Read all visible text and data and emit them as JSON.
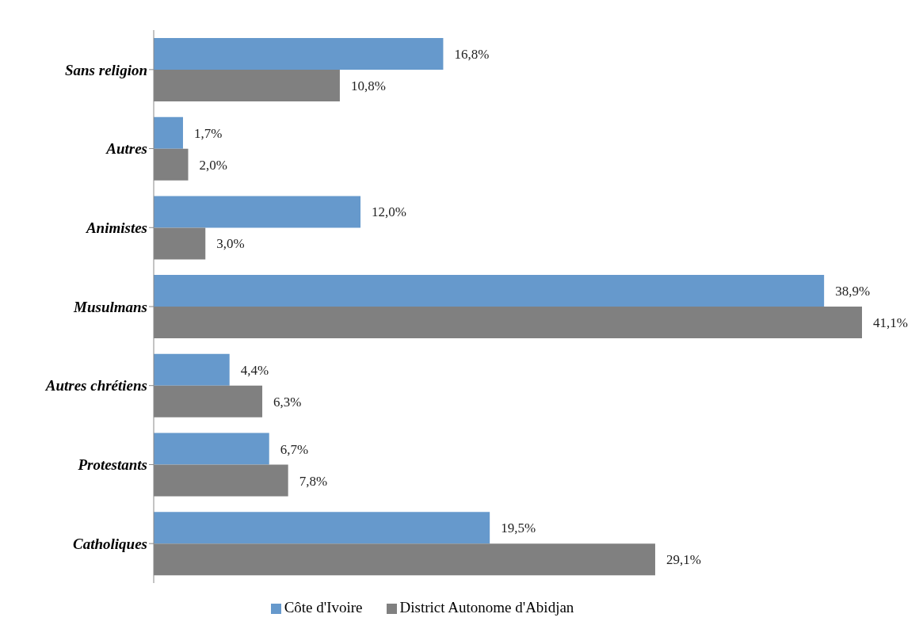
{
  "chart_data": {
    "type": "bar",
    "orientation": "horizontal",
    "categories": [
      "Sans religion",
      "Autres",
      "Animistes",
      "Musulmans",
      "Autres chrétiens",
      "Protestants",
      "Catholiques"
    ],
    "series": [
      {
        "name": "Côte d'Ivoire",
        "color": "#6699cc",
        "values": [
          16.8,
          1.7,
          12.0,
          38.9,
          4.4,
          6.7,
          19.5
        ],
        "value_labels": [
          "16,8%",
          "1,7%",
          "12,0%",
          "38,9%",
          "4,4%",
          "6,7%",
          "19,5%"
        ]
      },
      {
        "name": "District Autonome d'Abidjan",
        "color": "#808080",
        "values": [
          10.8,
          2.0,
          3.0,
          41.1,
          6.3,
          7.8,
          29.1
        ],
        "value_labels": [
          "10,8%",
          "2,0%",
          "3,0%",
          "41,1%",
          "6,3%",
          "7,8%",
          "29,1%"
        ]
      }
    ],
    "legend": "bottom"
  }
}
